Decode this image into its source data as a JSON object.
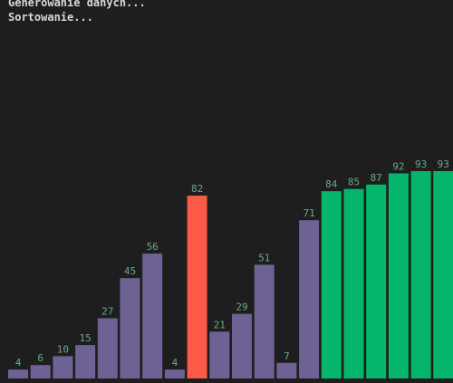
{
  "console": {
    "lines": [
      "Generowanie danych...",
      "Sortowanie..."
    ]
  },
  "chart_data": {
    "type": "bar",
    "title": "",
    "xlabel": "",
    "ylabel": "",
    "ylim": [
      0,
      93
    ],
    "values": [
      4,
      6,
      10,
      15,
      27,
      45,
      56,
      4,
      82,
      21,
      29,
      51,
      7,
      71,
      84,
      85,
      87,
      92,
      93,
      93
    ],
    "states": [
      "unsorted",
      "unsorted",
      "unsorted",
      "unsorted",
      "unsorted",
      "unsorted",
      "unsorted",
      "unsorted",
      "active",
      "unsorted",
      "unsorted",
      "unsorted",
      "unsorted",
      "unsorted",
      "sorted",
      "sorted",
      "sorted",
      "sorted",
      "sorted",
      "sorted"
    ],
    "colors": {
      "unsorted": "#6e6294",
      "active": "#fa5a46",
      "sorted": "#05b56c",
      "label": "#6aa88a",
      "background": "#1e1e1e"
    }
  }
}
